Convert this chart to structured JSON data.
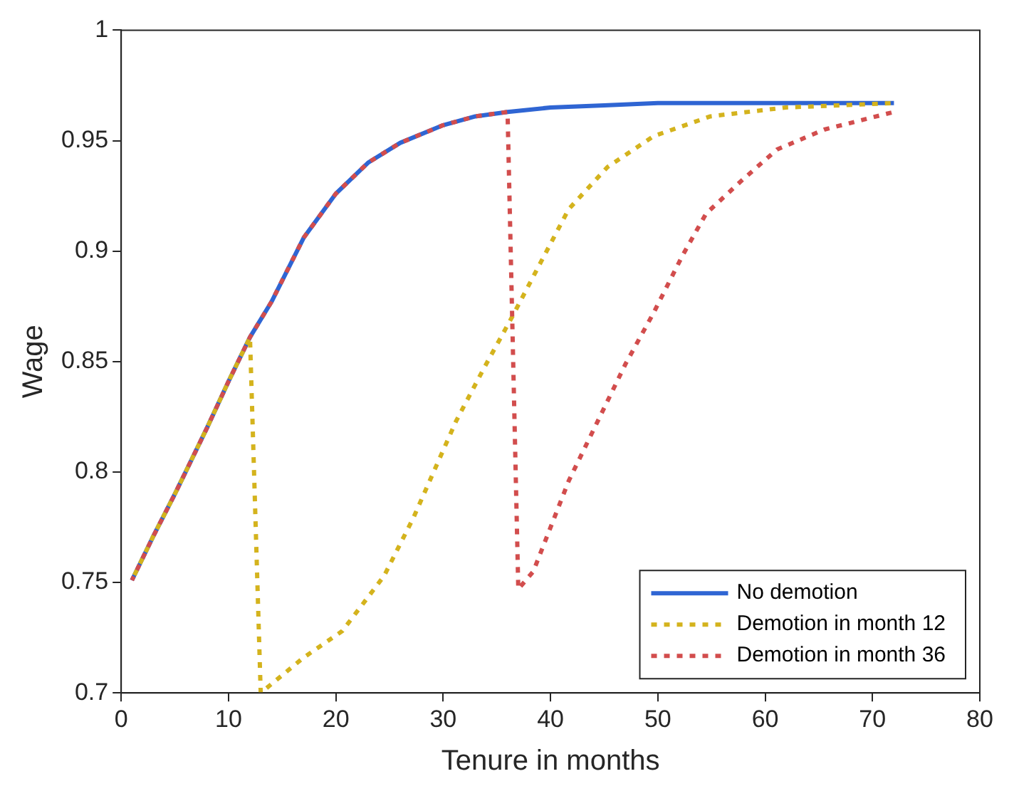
{
  "chart_data": {
    "type": "line",
    "xlabel": "Tenure in months",
    "ylabel": "Wage",
    "xlim": [
      0,
      80
    ],
    "xticks": [
      0,
      10,
      20,
      30,
      40,
      50,
      60,
      70,
      80
    ],
    "ylim": [
      0.7,
      1
    ],
    "yticks": [
      0.7,
      0.75,
      0.8,
      0.85,
      0.9,
      0.95,
      1
    ],
    "grid": false,
    "legend": "bottom right",
    "marker": "none",
    "series": [
      {
        "name": "No demotion",
        "color": "#2f65d3",
        "line_style": "solid",
        "x": [
          1,
          3,
          5,
          8,
          10,
          12,
          14,
          17,
          20,
          23,
          26,
          30,
          33,
          36,
          40,
          45,
          50,
          60,
          72
        ],
        "values": [
          0.751,
          0.771,
          0.79,
          0.82,
          0.841,
          0.861,
          0.877,
          0.906,
          0.926,
          0.94,
          0.949,
          0.957,
          0.961,
          0.963,
          0.965,
          0.966,
          0.967,
          0.967,
          0.967
        ]
      },
      {
        "name": "Demotion in month 12",
        "color": "#d4b31d",
        "line_style": "dashed",
        "x": [
          1,
          3,
          5,
          8,
          10,
          12,
          13,
          17,
          20.6,
          24.5,
          27.2,
          31.2,
          33.8,
          36.4,
          39.1,
          41.7,
          45.3,
          49.6,
          54.9,
          61.9,
          72
        ],
        "values": [
          0.751,
          0.771,
          0.79,
          0.82,
          0.841,
          0.861,
          0.7,
          0.716,
          0.728,
          0.753,
          0.779,
          0.823,
          0.847,
          0.87,
          0.895,
          0.919,
          0.938,
          0.952,
          0.961,
          0.965,
          0.967
        ]
      },
      {
        "name": "Demotion in month 36",
        "color": "#d24d4d",
        "line_style": "dashed",
        "x": [
          1,
          3,
          5,
          8,
          10,
          12,
          14,
          17,
          20,
          23,
          26,
          30,
          33,
          36,
          37,
          38.4,
          41.7,
          44.4,
          47,
          49.6,
          52.3,
          54.5,
          57.6,
          61.1,
          65.5,
          72
        ],
        "values": [
          0.751,
          0.771,
          0.79,
          0.82,
          0.841,
          0.861,
          0.877,
          0.906,
          0.926,
          0.94,
          0.949,
          0.957,
          0.961,
          0.963,
          0.747,
          0.755,
          0.796,
          0.823,
          0.849,
          0.872,
          0.898,
          0.917,
          0.931,
          0.946,
          0.955,
          0.963
        ]
      }
    ]
  }
}
